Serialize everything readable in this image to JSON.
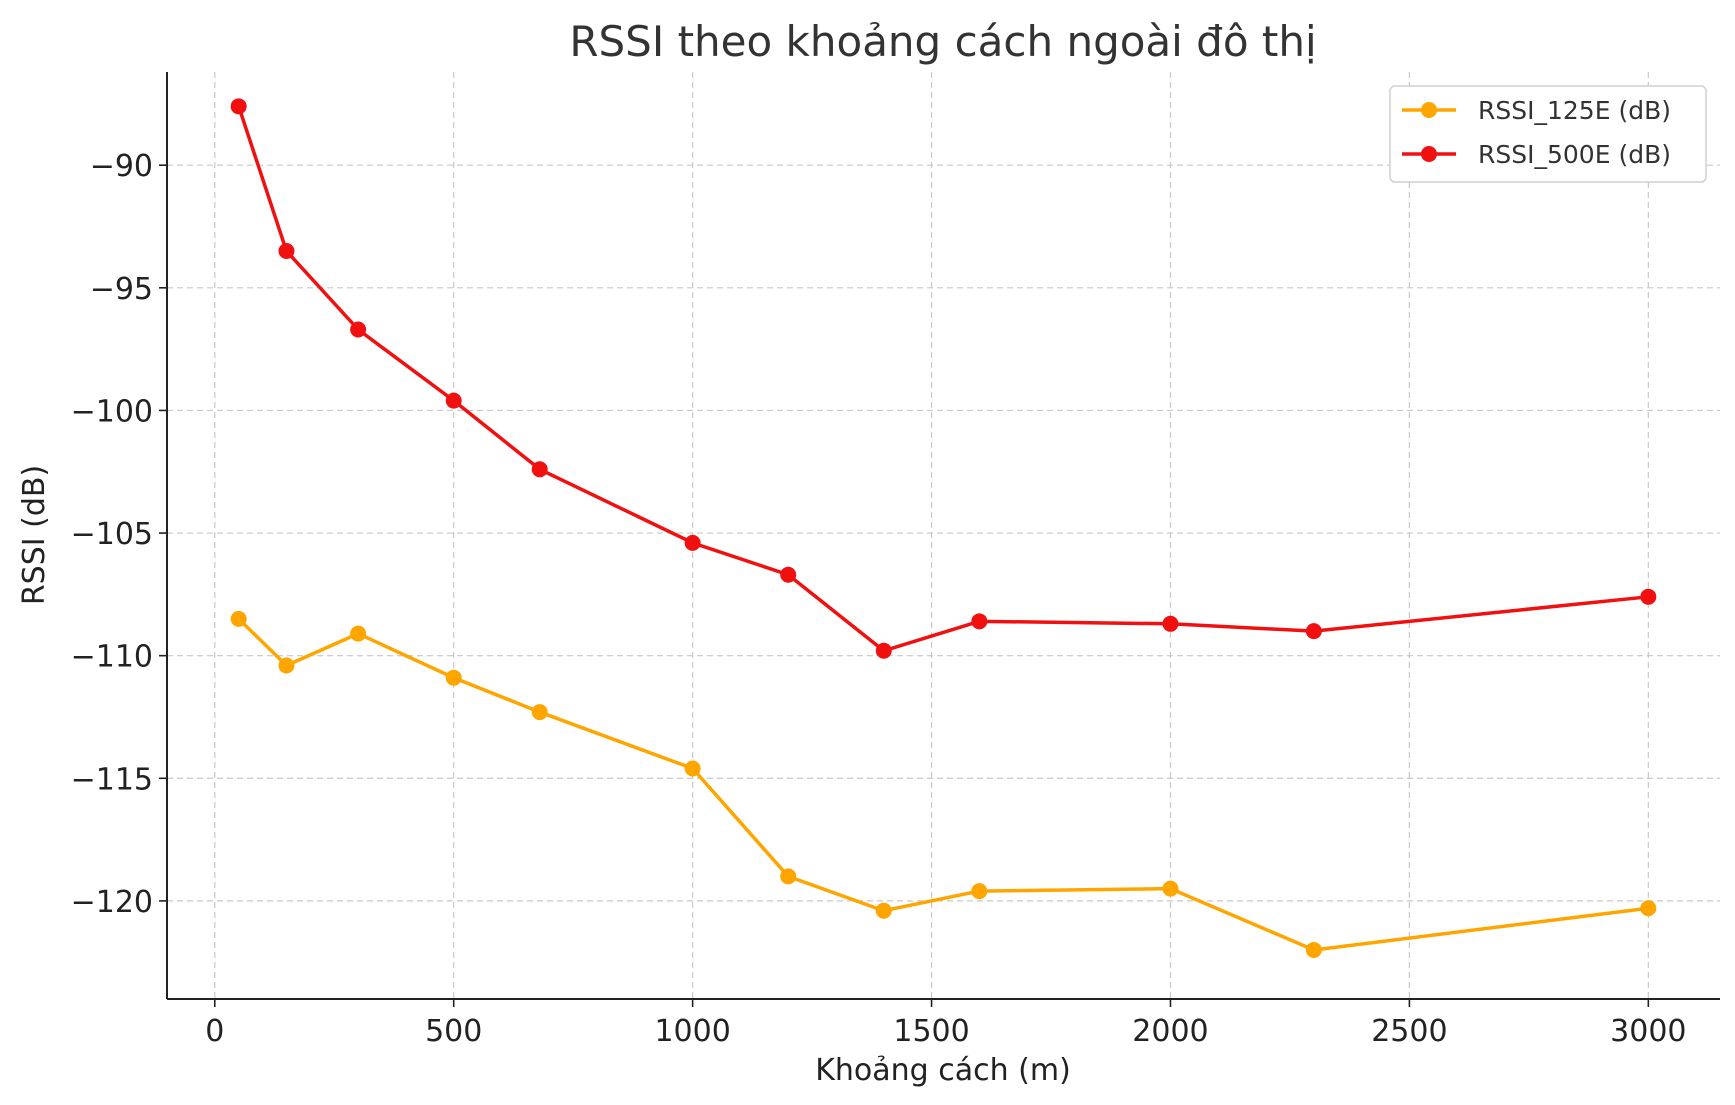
{
  "chart_data": {
    "type": "line",
    "title": "RSSI theo khoảng cách ngoài đô thị",
    "xlabel": "Khoảng cách (m)",
    "ylabel": "RSSI (dB)",
    "xlim": [
      -100,
      3150
    ],
    "ylim": [
      -124,
      -86.2
    ],
    "xticks": [
      0,
      500,
      1000,
      1500,
      2000,
      2500,
      3000
    ],
    "xtick_labels": [
      "0",
      "500",
      "1000",
      "1500",
      "2000",
      "2500",
      "3000"
    ],
    "yticks": [
      -90,
      -95,
      -100,
      -105,
      -110,
      -115,
      -120
    ],
    "ytick_labels": [
      "−90",
      "−95",
      "−100",
      "−105",
      "−110",
      "−115",
      "−120"
    ],
    "grid": true,
    "legend_position": "top-right",
    "x": [
      50,
      150,
      300,
      500,
      680,
      1000,
      1200,
      1400,
      1600,
      2000,
      2300,
      3000
    ],
    "series": [
      {
        "name": "RSSI_125E (dB)",
        "color": "#FFA500",
        "values": [
          -108.5,
          -110.4,
          -109.1,
          -110.9,
          -112.3,
          -114.6,
          -119.0,
          -120.4,
          -119.6,
          -119.5,
          -122.0,
          -120.3
        ]
      },
      {
        "name": "RSSI_500E (dB)",
        "color": "#F01010",
        "values": [
          -87.6,
          -93.5,
          -96.7,
          -99.6,
          -102.4,
          -105.4,
          -106.7,
          -109.8,
          -108.6,
          -108.7,
          -109.0,
          -107.6
        ]
      }
    ]
  }
}
